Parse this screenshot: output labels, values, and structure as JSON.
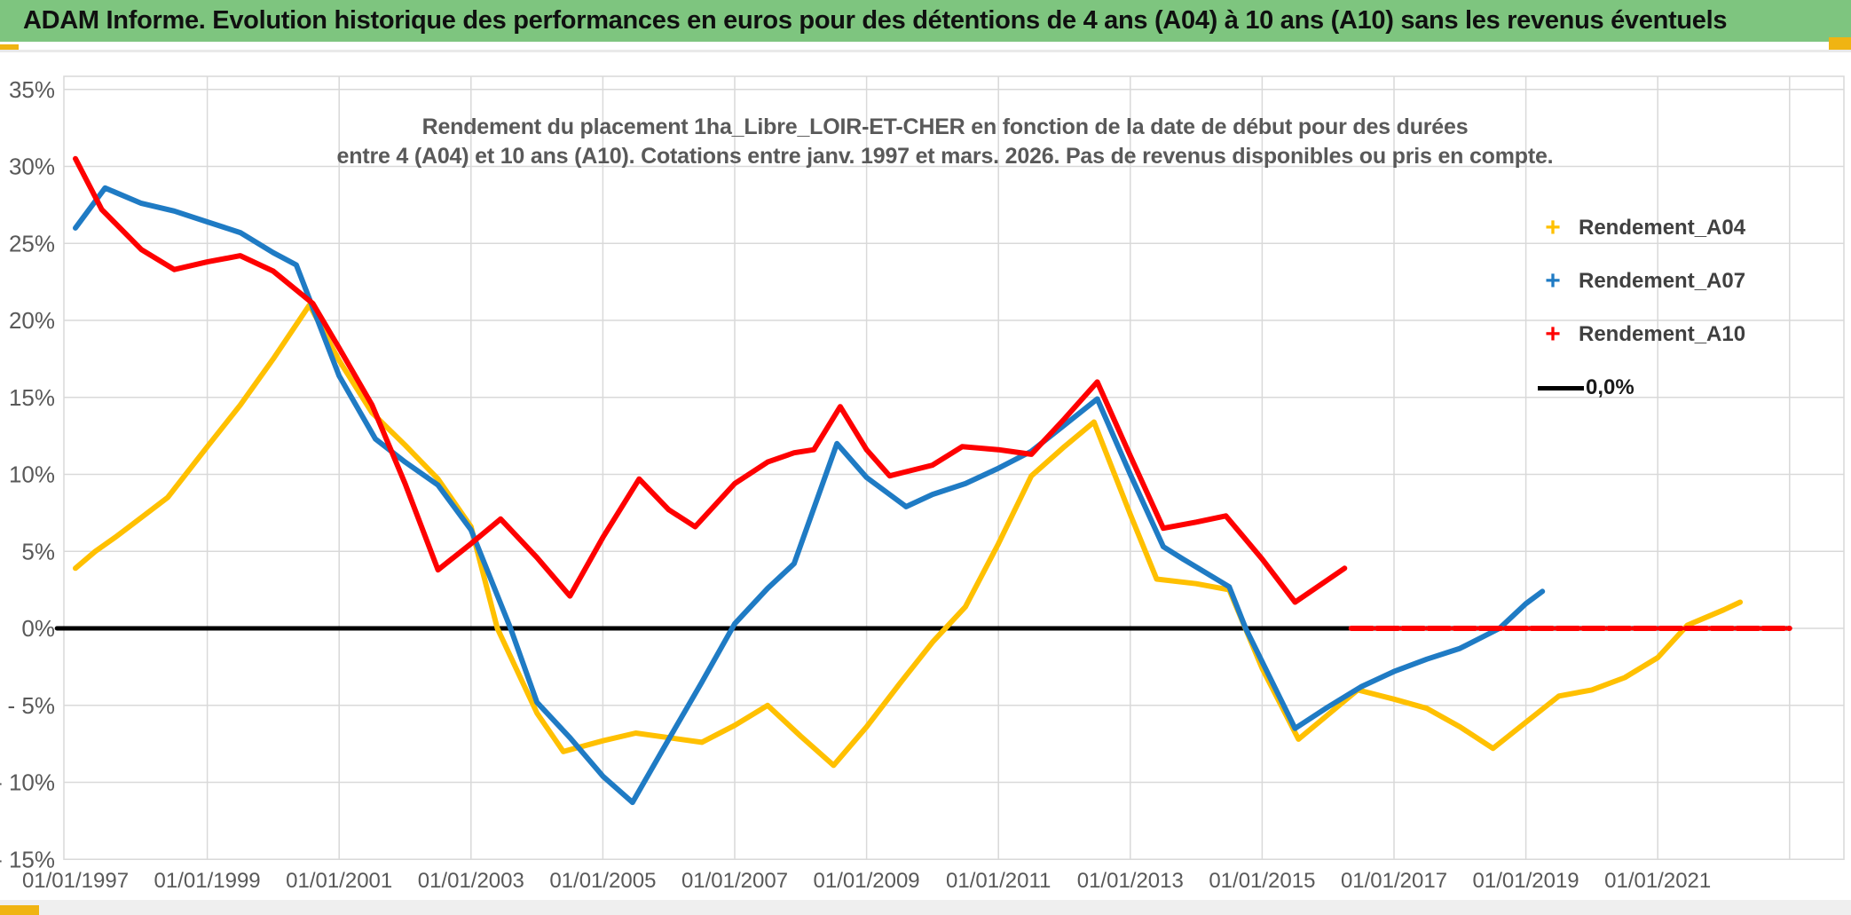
{
  "header": {
    "title": "ADAM Informe. Evolution historique des performances en euros pour des détentions de 4 ans (A04) à 10 ans (A10) sans les revenus éventuels"
  },
  "colors": {
    "header_bg": "#7EC57F",
    "accent_gold": "#F0B412",
    "grid": "#D9D9D9",
    "axis_text": "#595959",
    "title_text": "#595959",
    "legend_text": "#404040",
    "series_a04": "#FFC000",
    "series_a07": "#1F7BC4",
    "series_a10": "#FE0000",
    "zero_line": "#000000",
    "footer_strip": "#EFEFEF"
  },
  "chart_data": {
    "type": "line",
    "title": {
      "line1": "Rendement du placement 1ha_Libre_LOIR-ET-CHER en fonction de la date de début pour des durées",
      "line2": "entre 4 (A04) et 10 ans (A10). Cotations entre janv. 1997 et mars. 2026. Pas de revenus disponibles ou pris en compte."
    },
    "y_axis": {
      "unit": "%",
      "min": -15,
      "max": 35,
      "tick_values": [
        35,
        30,
        25,
        20,
        15,
        10,
        5,
        0,
        -5,
        -10,
        -15
      ],
      "tick_labels": [
        "35%",
        "30%",
        "25%",
        "20%",
        "15%",
        "10%",
        "5%",
        "0%",
        "- 5%",
        "- 10%",
        "- 15%"
      ]
    },
    "x_axis": {
      "tick_years": [
        1997,
        1999,
        2001,
        2003,
        2005,
        2007,
        2009,
        2011,
        2013,
        2015,
        2017,
        2019,
        2021
      ],
      "tick_labels": [
        "01/01/1997",
        "01/01/1999",
        "01/01/2001",
        "01/01/2003",
        "01/01/2005",
        "01/01/2007",
        "01/01/2009",
        "01/01/2011",
        "01/01/2013",
        "01/01/2015",
        "01/01/2017",
        "01/01/2019",
        "01/01/2021"
      ],
      "gridline_years": [
        1999,
        2001,
        2003,
        2005,
        2007,
        2009,
        2011,
        2013,
        2015,
        2017,
        2019,
        2021,
        2023
      ],
      "range_years": [
        1996.7,
        2023.8
      ]
    },
    "legend": [
      {
        "label": "Rendement_A04",
        "marker": "plus",
        "color": "#FFC000"
      },
      {
        "label": "Rendement_A07",
        "marker": "plus",
        "color": "#1F7BC4"
      },
      {
        "label": "Rendement_A10",
        "marker": "plus",
        "color": "#FE0000"
      },
      {
        "label": "0,0%",
        "marker": "line",
        "color": "#000000"
      }
    ],
    "series": [
      {
        "name": "zero-reference",
        "label": "0,0%",
        "color": "#000000",
        "width": 5,
        "points": [
          [
            1996.72,
            0
          ],
          [
            2023.0,
            0
          ]
        ]
      },
      {
        "name": "Rendement_A04",
        "color": "#FFC000",
        "width": 6,
        "points": [
          [
            1997.0,
            3.9
          ],
          [
            1997.3,
            5.0
          ],
          [
            1997.6,
            5.9
          ],
          [
            1998.0,
            7.2
          ],
          [
            1998.4,
            8.5
          ],
          [
            1999.0,
            11.8
          ],
          [
            1999.5,
            14.5
          ],
          [
            2000.0,
            17.5
          ],
          [
            2000.55,
            21.0
          ],
          [
            2001.0,
            17.4
          ],
          [
            2001.5,
            14.0
          ],
          [
            2002.0,
            11.9
          ],
          [
            2002.5,
            9.7
          ],
          [
            2003.0,
            6.6
          ],
          [
            2003.4,
            0.0
          ],
          [
            2004.0,
            -5.5
          ],
          [
            2004.4,
            -8.0
          ],
          [
            2005.0,
            -7.3
          ],
          [
            2005.5,
            -6.8
          ],
          [
            2006.0,
            -7.1
          ],
          [
            2006.5,
            -7.4
          ],
          [
            2007.0,
            -6.3
          ],
          [
            2007.5,
            -5.0
          ],
          [
            2008.0,
            -7.0
          ],
          [
            2008.5,
            -8.9
          ],
          [
            2009.0,
            -6.4
          ],
          [
            2009.5,
            -3.6
          ],
          [
            2010.0,
            -0.9
          ],
          [
            2010.5,
            1.4
          ],
          [
            2011.0,
            5.5
          ],
          [
            2011.5,
            9.9
          ],
          [
            2012.0,
            11.8
          ],
          [
            2012.45,
            13.4
          ],
          [
            2013.0,
            7.4
          ],
          [
            2013.4,
            3.2
          ],
          [
            2014.0,
            2.9
          ],
          [
            2014.5,
            2.5
          ],
          [
            2015.0,
            -2.6
          ],
          [
            2015.55,
            -7.2
          ],
          [
            2016.0,
            -5.6
          ],
          [
            2016.45,
            -4.0
          ],
          [
            2017.0,
            -4.6
          ],
          [
            2017.5,
            -5.2
          ],
          [
            2018.0,
            -6.4
          ],
          [
            2018.5,
            -7.8
          ],
          [
            2019.0,
            -6.1
          ],
          [
            2019.5,
            -4.4
          ],
          [
            2020.0,
            -4.0
          ],
          [
            2020.5,
            -3.2
          ],
          [
            2021.0,
            -1.9
          ],
          [
            2021.45,
            0.2
          ],
          [
            2022.0,
            1.2
          ],
          [
            2022.25,
            1.7
          ]
        ]
      },
      {
        "name": "Rendement_A07",
        "color": "#1F7BC4",
        "width": 6,
        "points": [
          [
            1997.0,
            26.0
          ],
          [
            1997.45,
            28.6
          ],
          [
            1998.0,
            27.6
          ],
          [
            1998.5,
            27.1
          ],
          [
            1999.0,
            26.4
          ],
          [
            1999.5,
            25.7
          ],
          [
            2000.0,
            24.4
          ],
          [
            2000.35,
            23.6
          ],
          [
            2001.0,
            16.4
          ],
          [
            2001.55,
            12.3
          ],
          [
            2002.0,
            10.8
          ],
          [
            2002.5,
            9.3
          ],
          [
            2003.0,
            6.4
          ],
          [
            2003.6,
            0.0
          ],
          [
            2004.0,
            -4.8
          ],
          [
            2004.5,
            -7.1
          ],
          [
            2005.0,
            -9.6
          ],
          [
            2005.45,
            -11.3
          ],
          [
            2006.0,
            -7.2
          ],
          [
            2006.5,
            -3.5
          ],
          [
            2007.0,
            0.3
          ],
          [
            2007.5,
            2.6
          ],
          [
            2007.9,
            4.2
          ],
          [
            2008.55,
            12.0
          ],
          [
            2009.0,
            9.8
          ],
          [
            2009.6,
            7.9
          ],
          [
            2010.0,
            8.7
          ],
          [
            2010.5,
            9.4
          ],
          [
            2011.0,
            10.4
          ],
          [
            2011.5,
            11.5
          ],
          [
            2012.0,
            13.2
          ],
          [
            2012.5,
            14.9
          ],
          [
            2013.0,
            10.0
          ],
          [
            2013.5,
            5.3
          ],
          [
            2013.8,
            4.5
          ],
          [
            2014.5,
            2.7
          ],
          [
            2014.75,
            0.0
          ],
          [
            2015.5,
            -6.5
          ],
          [
            2016.0,
            -5.1
          ],
          [
            2016.5,
            -3.8
          ],
          [
            2017.0,
            -2.8
          ],
          [
            2017.5,
            -2.0
          ],
          [
            2018.0,
            -1.3
          ],
          [
            2018.6,
            0.0
          ],
          [
            2019.0,
            1.6
          ],
          [
            2019.25,
            2.4
          ]
        ]
      },
      {
        "name": "Rendement_A10",
        "color": "#FE0000",
        "width": 6,
        "points": [
          [
            1997.0,
            30.5
          ],
          [
            1997.4,
            27.2
          ],
          [
            1998.0,
            24.6
          ],
          [
            1998.5,
            23.3
          ],
          [
            1999.0,
            23.8
          ],
          [
            1999.5,
            24.2
          ],
          [
            2000.0,
            23.2
          ],
          [
            2000.6,
            21.1
          ],
          [
            2001.0,
            18.2
          ],
          [
            2001.5,
            14.5
          ],
          [
            2002.0,
            9.4
          ],
          [
            2002.5,
            3.8
          ],
          [
            2003.0,
            5.5
          ],
          [
            2003.45,
            7.1
          ],
          [
            2004.0,
            4.6
          ],
          [
            2004.5,
            2.1
          ],
          [
            2005.0,
            5.9
          ],
          [
            2005.55,
            9.7
          ],
          [
            2006.0,
            7.7
          ],
          [
            2006.4,
            6.6
          ],
          [
            2007.0,
            9.4
          ],
          [
            2007.5,
            10.8
          ],
          [
            2007.9,
            11.4
          ],
          [
            2008.2,
            11.6
          ],
          [
            2008.6,
            14.4
          ],
          [
            2009.0,
            11.6
          ],
          [
            2009.35,
            9.9
          ],
          [
            2010.0,
            10.6
          ],
          [
            2010.45,
            11.8
          ],
          [
            2011.0,
            11.6
          ],
          [
            2011.5,
            11.3
          ],
          [
            2012.0,
            13.6
          ],
          [
            2012.5,
            16.0
          ],
          [
            2013.0,
            11.2
          ],
          [
            2013.5,
            6.5
          ],
          [
            2014.0,
            6.9
          ],
          [
            2014.45,
            7.3
          ],
          [
            2015.0,
            4.5
          ],
          [
            2015.5,
            1.7
          ],
          [
            2016.25,
            3.9
          ]
        ]
      },
      {
        "name": "Rendement_A10-zero-segment",
        "color": "#FE0000",
        "width": 6,
        "dashed": true,
        "points": [
          [
            2016.35,
            0
          ],
          [
            2023.0,
            0
          ]
        ]
      }
    ]
  }
}
